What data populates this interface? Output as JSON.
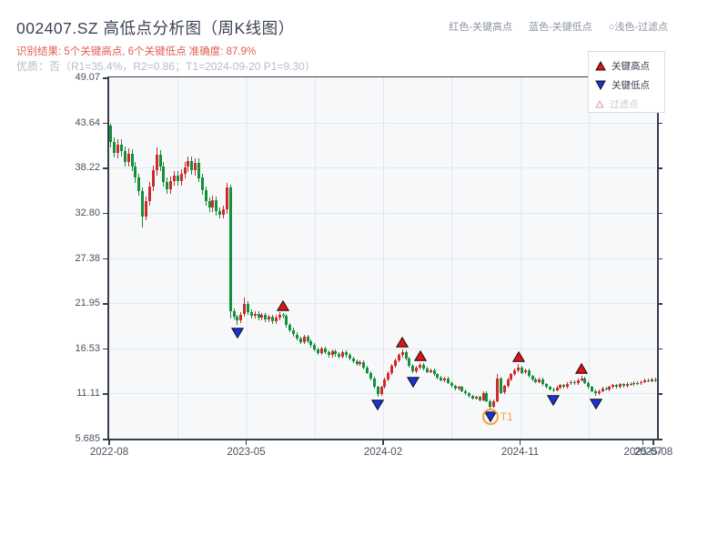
{
  "header": {
    "title": "002407.SZ 高低点分析图（周K线图）",
    "inline_legend": [
      {
        "label": "红色-关键高点"
      },
      {
        "label": "蓝色-关键低点"
      },
      {
        "label": "○浅色-过滤点"
      }
    ],
    "result_line": "识别结果: 5个关键高点, 6个关键低点  准确度: 87.9%",
    "quality_line": "优质：否（R1=35.4%，R2=0.86；T1=2024-09-20 P1=9.30）"
  },
  "legend_box": {
    "items": [
      {
        "icon": "triangle-up-icon",
        "label": "关键高点",
        "muted": false
      },
      {
        "icon": "triangle-down-icon",
        "label": "关键低点",
        "muted": false
      },
      {
        "icon": "triangle-outline-icon",
        "label": "过滤点",
        "muted": true
      }
    ]
  },
  "chart_data": {
    "type": "candlestick",
    "title": "002407.SZ 高低点分析图（周K线图）",
    "interval": "weekly",
    "y_min": 5.685,
    "y_max": 49.07,
    "weeks": 156,
    "y_ticks": [
      {
        "label": "49.07",
        "value": 49.07
      },
      {
        "label": "43.64",
        "value": 43.64
      },
      {
        "label": "38.22",
        "value": 38.22
      },
      {
        "label": "32.80",
        "value": 32.8
      },
      {
        "label": "27.38",
        "value": 27.38
      },
      {
        "label": "21.95",
        "value": 21.95
      },
      {
        "label": "16.53",
        "value": 16.53
      },
      {
        "label": "11.11",
        "value": 11.11
      },
      {
        "label": "5.685",
        "value": 5.685
      }
    ],
    "x_ticks": [
      {
        "label": "2022-08",
        "week": 0
      },
      {
        "label": "2023-05",
        "week": 39
      },
      {
        "label": "2024-02",
        "week": 78
      },
      {
        "label": "2024-11",
        "week": 117
      },
      {
        "label": "2025-07",
        "week": 152
      },
      {
        "label": "2025-08",
        "week": 155
      }
    ],
    "y_gridlines": [
      43.64,
      38.22,
      32.8,
      27.38,
      21.95,
      16.53,
      11.11
    ],
    "x_gridline_weeks": [
      19.5,
      39,
      58.5,
      78,
      97.5,
      117,
      136.5
    ],
    "first_open": 43.3,
    "closes": [
      41.3,
      40.0,
      41.0,
      40.2,
      38.9,
      39.9,
      38.4,
      37.0,
      35.4,
      32.4,
      34.2,
      36.0,
      37.9,
      39.8,
      38.4,
      36.5,
      35.6,
      36.6,
      37.3,
      36.6,
      37.5,
      38.3,
      39.0,
      37.9,
      38.8,
      37.0,
      35.5,
      34.2,
      33.4,
      34.3,
      33.0,
      32.6,
      33.2,
      35.9,
      21.0,
      20.3,
      19.9,
      20.6,
      21.9,
      20.9,
      20.4,
      20.7,
      20.2,
      20.5,
      20.0,
      20.3,
      19.8,
      20.2,
      20.6,
      20.4,
      19.3,
      18.7,
      18.2,
      17.7,
      17.3,
      17.9,
      17.4,
      16.9,
      16.4,
      16.0,
      16.5,
      16.1,
      15.7,
      16.2,
      15.8,
      15.5,
      16.1,
      15.7,
      15.3,
      15.0,
      14.6,
      14.9,
      14.2,
      13.6,
      12.9,
      11.9,
      11.0,
      11.9,
      12.8,
      13.6,
      14.4,
      15.1,
      15.7,
      16.1,
      15.3,
      14.4,
      13.8,
      14.2,
      14.5,
      14.1,
      13.7,
      13.9,
      13.4,
      13.0,
      12.7,
      12.9,
      12.4,
      12.0,
      11.7,
      11.9,
      11.4,
      11.1,
      10.8,
      10.5,
      10.7,
      10.3,
      11.2,
      10.2,
      9.5,
      10.2,
      12.9,
      11.2,
      12.0,
      12.8,
      13.4,
      13.9,
      14.2,
      13.6,
      13.9,
      13.2,
      12.8,
      12.5,
      12.8,
      12.2,
      11.9,
      11.6,
      11.5,
      11.8,
      12.1,
      11.9,
      12.3,
      12.5,
      12.3,
      12.7,
      12.9,
      12.4,
      11.9,
      11.4,
      11.1,
      11.4,
      11.7,
      11.6,
      11.9,
      12.1,
      11.9,
      12.2,
      12.0,
      12.3,
      12.2,
      12.4,
      12.3,
      12.5,
      12.7,
      12.6,
      12.8,
      12.7
    ],
    "overrides": {
      "0": {
        "o": 43.3,
        "h": 43.5
      },
      "9": {
        "l": 31.0
      },
      "13": {
        "h": 40.7
      },
      "34": {
        "l": 20.1
      },
      "36": {
        "l": 19.4
      },
      "38": {
        "h": 22.6
      },
      "49": {
        "h": 20.8
      },
      "76": {
        "l": 10.7
      },
      "83": {
        "h": 16.4
      },
      "86": {
        "l": 13.5
      },
      "88": {
        "h": 14.8
      },
      "108": {
        "l": 9.3
      },
      "110": {
        "h": 13.4
      },
      "116": {
        "h": 14.6
      },
      "126": {
        "l": 11.3
      },
      "134": {
        "h": 13.2
      },
      "138": {
        "l": 10.8
      }
    },
    "key_highs": [
      {
        "week": 49,
        "value": 20.8
      },
      {
        "week": 83,
        "value": 16.4
      },
      {
        "week": 88,
        "value": 14.8
      },
      {
        "week": 116,
        "value": 14.6
      },
      {
        "week": 134,
        "value": 13.2
      }
    ],
    "key_lows": [
      {
        "week": 36,
        "value": 19.4
      },
      {
        "week": 76,
        "value": 10.7
      },
      {
        "week": 86,
        "value": 13.5
      },
      {
        "week": 108,
        "value": 9.3
      },
      {
        "week": 126,
        "value": 11.3
      },
      {
        "week": 138,
        "value": 10.8
      }
    ],
    "t1_marker": {
      "week": 108,
      "value": 9.3,
      "label": "T1",
      "date": "2024-09-20",
      "price": "9.30"
    },
    "colors": {
      "up": "#cf2b2b",
      "down": "#15903d",
      "key_high": "#e01212",
      "key_low": "#1d2fd6",
      "filtered_fill": "#fdf4f4",
      "filtered_stroke": "#d4a3a3",
      "t1": "#f2a33c",
      "plot_bg": "#f6f8fa",
      "grid": "#e4e8ee",
      "axis": "#353e4b",
      "tick_label": "#49525f"
    }
  }
}
